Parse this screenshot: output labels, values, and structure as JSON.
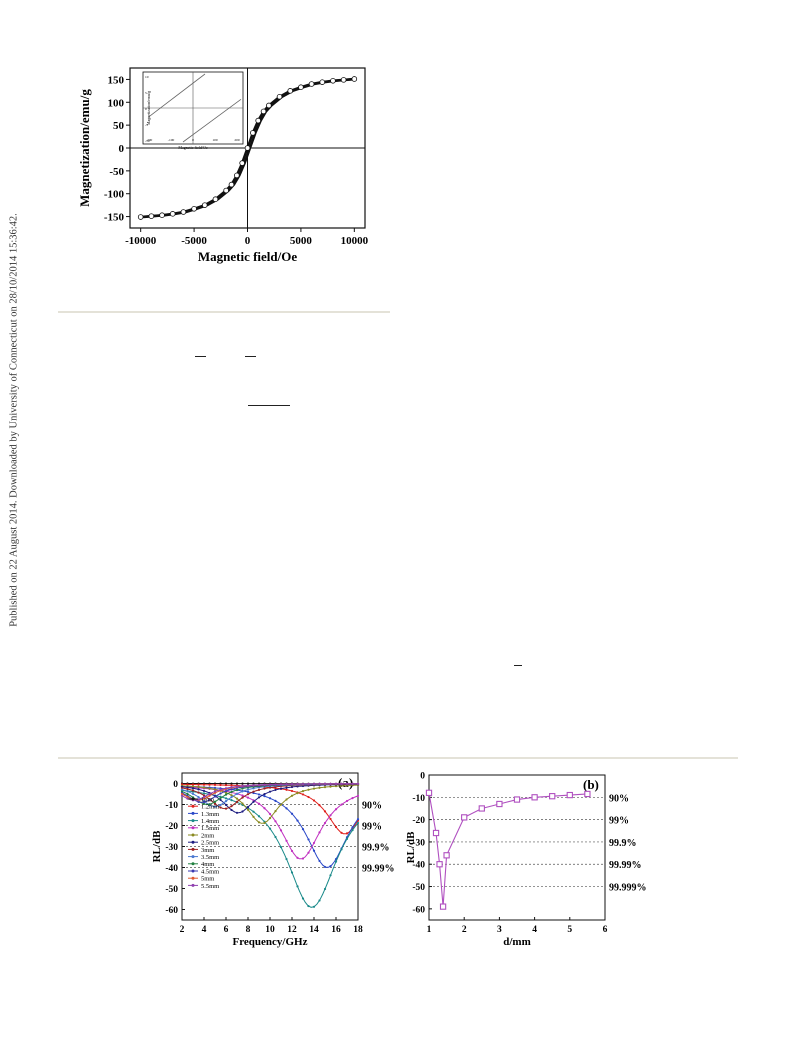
{
  "sidebar_note": "Published on 22 August 2014. Downloaded by University of Connecticut on 28/10/2014 15:36:42.",
  "chart_data": [
    {
      "type": "line",
      "id": "hysteresis",
      "xlabel": "Magnetic field/Oe",
      "ylabel": "Magnetization/emu/g",
      "xlim": [
        -11000,
        11000
      ],
      "ylim": [
        -175,
        175
      ],
      "xticks": [
        -10000,
        -5000,
        0,
        5000,
        10000
      ],
      "yticks": [
        150,
        100,
        50,
        0,
        -50,
        -100,
        -150
      ],
      "xtick_labels": [
        "-10000",
        "-5000",
        "0",
        "5000",
        "10000"
      ],
      "ytick_labels": [
        "150",
        "100",
        "50",
        "0",
        "-50",
        "-100",
        "-150"
      ],
      "series": [
        {
          "x": [
            -10000,
            -9000,
            -8000,
            -7000,
            -6000,
            -5000,
            -4000,
            -3000,
            -2000,
            -1500,
            -1000,
            -500,
            0,
            500,
            1000,
            1500,
            2000,
            3000,
            4000,
            5000,
            6000,
            7000,
            8000,
            9000,
            10000
          ],
          "y": [
            -151,
            -149,
            -147,
            -144,
            -140,
            -133,
            -125,
            -112,
            -93,
            -80,
            -60,
            -33,
            0,
            33,
            60,
            80,
            93,
            112,
            125,
            133,
            140,
            144,
            147,
            149,
            151
          ]
        }
      ],
      "inset": {
        "xlabel": "Magnetic field/Oe",
        "ylabel": "Magnetization/emu/g",
        "xtick_labels": [
          "-200",
          "-100",
          "0",
          "100",
          "200"
        ],
        "ytick_labels": [
          "10",
          "5",
          "0",
          "-5",
          "-10"
        ]
      }
    },
    {
      "type": "line",
      "id": "rl-frequency",
      "panel_label": "(a)",
      "xlabel": "Frequency/GHz",
      "ylabel": "RL/dB",
      "xlim": [
        2,
        18
      ],
      "ylim": [
        -65,
        5
      ],
      "xticks": [
        2,
        4,
        6,
        8,
        10,
        12,
        14,
        16,
        18
      ],
      "yticks": [
        0,
        -10,
        -20,
        -30,
        -40,
        -50,
        -60
      ],
      "xtick_labels": [
        "2",
        "4",
        "6",
        "8",
        "10",
        "12",
        "14",
        "16",
        "18"
      ],
      "ytick_labels": [
        "0",
        "-10",
        "-20",
        "-30",
        "-40",
        "-50",
        "-60"
      ],
      "ref_lines": [
        {
          "y": -10,
          "label": "90%"
        },
        {
          "y": -20,
          "label": "99%"
        },
        {
          "y": -30,
          "label": "99.9%"
        },
        {
          "y": -40,
          "label": "99.99%"
        }
      ],
      "series": [
        {
          "name": "1mm",
          "color": "#111111",
          "f0": 22,
          "depth": -3
        },
        {
          "name": "1.2mm",
          "color": "#e0201c",
          "f0": 16.8,
          "depth": -24
        },
        {
          "name": "1.3mm",
          "color": "#2a48c8",
          "f0": 15.2,
          "depth": -40
        },
        {
          "name": "1.4mm",
          "color": "#1a8a8a",
          "f0": 13.8,
          "depth": -59
        },
        {
          "name": "1.5mm",
          "color": "#c030c0",
          "f0": 12.8,
          "depth": -36
        },
        {
          "name": "2mm",
          "color": "#8a8a20",
          "f0": 9.3,
          "depth": -19
        },
        {
          "name": "2.5mm",
          "color": "#1c1c80",
          "f0": 7.1,
          "depth": -14
        },
        {
          "name": "3mm",
          "color": "#9a2020",
          "f0": 5.9,
          "depth": -12
        },
        {
          "name": "3.5mm",
          "color": "#4a78d0",
          "f0": 5.0,
          "depth": -11
        },
        {
          "name": "4mm",
          "color": "#208040",
          "f0": 4.3,
          "depth": -10
        },
        {
          "name": "4.5mm",
          "color": "#3a3ab0",
          "f0": 3.8,
          "depth": -9
        },
        {
          "name": "5mm",
          "color": "#e05a30",
          "f0": 3.4,
          "depth": -8
        },
        {
          "name": "5.5mm",
          "color": "#9040b0",
          "f0": 3.1,
          "depth": -8
        }
      ]
    },
    {
      "type": "line",
      "id": "rl-thickness",
      "panel_label": "(b)",
      "xlabel": "d/mm",
      "ylabel": "RL/dB",
      "xlim": [
        1,
        6
      ],
      "ylim": [
        -65,
        0
      ],
      "xticks": [
        1,
        2,
        3,
        4,
        5,
        6
      ],
      "yticks": [
        0,
        -10,
        -20,
        -30,
        -40,
        -50,
        -60
      ],
      "xtick_labels": [
        "1",
        "2",
        "3",
        "4",
        "5",
        "6"
      ],
      "ytick_labels": [
        "0",
        "-10",
        "-20",
        "-30",
        "-40",
        "-50",
        "-60"
      ],
      "ref_lines": [
        {
          "y": -10,
          "label": "90%"
        },
        {
          "y": -20,
          "label": "99%"
        },
        {
          "y": -30,
          "label": "99.9%"
        },
        {
          "y": -40,
          "label": "99.99%"
        },
        {
          "y": -50,
          "label": "99.999%"
        }
      ],
      "series": [
        {
          "x": [
            1.0,
            1.2,
            1.3,
            1.4,
            1.5,
            2.0,
            2.5,
            3.0,
            3.5,
            4.0,
            4.5,
            5.0,
            5.5
          ],
          "y": [
            -8,
            -26,
            -40,
            -59,
            -36,
            -19,
            -15,
            -13,
            -11,
            -10,
            -9.5,
            -9,
            -8.5
          ],
          "color": "#b050c0"
        }
      ]
    }
  ]
}
